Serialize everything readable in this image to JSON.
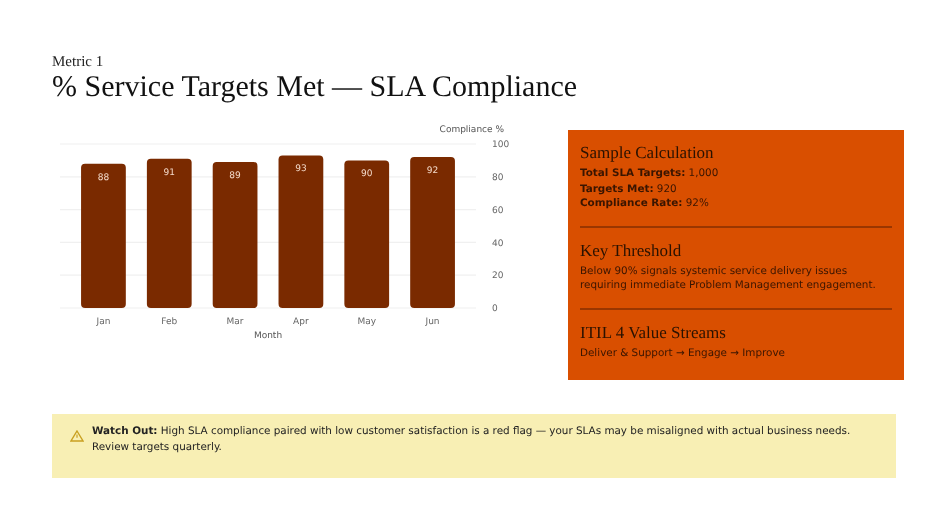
{
  "chart_data": {
    "type": "bar",
    "subtitle": "Metric 1",
    "title": "% Service Targets Met — SLA Compliance",
    "xlabel": "Month",
    "ylabel": "Compliance %",
    "categories": [
      "Jan",
      "Feb",
      "Mar",
      "Apr",
      "May",
      "Jun"
    ],
    "values": [
      88,
      91,
      89,
      93,
      90,
      92
    ],
    "color": "#7a2a00",
    "data_labels": true,
    "ylim": [
      0,
      100
    ],
    "yticks": [
      0,
      20,
      40,
      60,
      80,
      100
    ],
    "grid": "y",
    "annotations": [
      "Sample Calculation",
      "Total SLA Targets: 1,000",
      "Targets Met: 920",
      "Compliance Rate: 92%",
      "Key Threshold",
      "Below 90% signals systemic service delivery issues requiring immediate Problem Management engagement.",
      "ITIL 4 Value Streams",
      "Deliver & Support → Engage → Improve",
      "Watch Out: High SLA compliance paired with low customer satisfaction is a red flag — your SLAs may be misaligned with actual business needs. Review targets quarterly."
    ]
  }
}
